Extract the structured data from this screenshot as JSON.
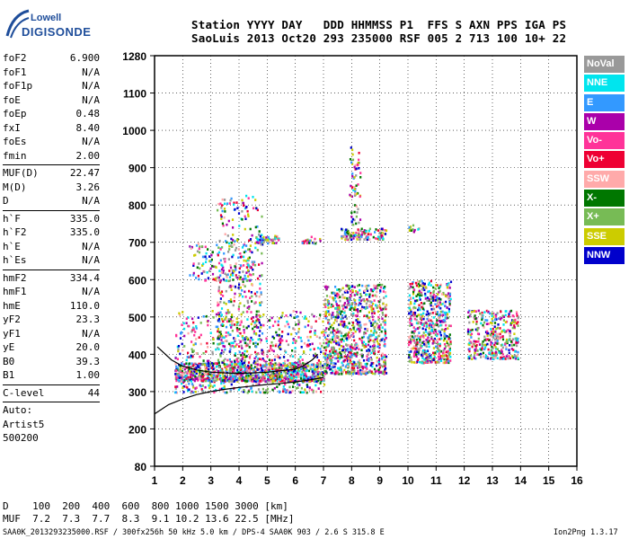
{
  "logo": {
    "line1": "Lowell",
    "line2": "DIGISONDE"
  },
  "header": {
    "line1": "Station YYYY DAY   DDD HHMMSS P1  FFS S AXN PPS IGA PS",
    "line2": "SaoLuis 2013 Oct20 293 235000 RSF 005 2 713 100 10+ 22"
  },
  "params": {
    "group1": [
      {
        "name": "foF2",
        "value": "6.900"
      },
      {
        "name": "foF1",
        "value": "N/A"
      },
      {
        "name": "foF1p",
        "value": "N/A"
      },
      {
        "name": "foE",
        "value": "N/A"
      },
      {
        "name": "foEp",
        "value": "0.48"
      },
      {
        "name": "fxI",
        "value": "8.40"
      },
      {
        "name": "foEs",
        "value": "N/A"
      },
      {
        "name": "fmin",
        "value": "2.00"
      }
    ],
    "group2": [
      {
        "name": "MUF(D)",
        "value": "22.47"
      },
      {
        "name": "M(D)",
        "value": "3.26"
      },
      {
        "name": "D",
        "value": "N/A"
      }
    ],
    "group3": [
      {
        "name": "h`F",
        "value": "335.0"
      },
      {
        "name": "h`F2",
        "value": "335.0"
      },
      {
        "name": "h`E",
        "value": "N/A"
      },
      {
        "name": "h`Es",
        "value": "N/A"
      }
    ],
    "group4": [
      {
        "name": "hmF2",
        "value": "334.4"
      },
      {
        "name": "hmF1",
        "value": "N/A"
      },
      {
        "name": "hmE",
        "value": "110.0"
      },
      {
        "name": "yF2",
        "value": "23.3"
      },
      {
        "name": "yF1",
        "value": "N/A"
      },
      {
        "name": "yE",
        "value": "20.0"
      },
      {
        "name": "B0",
        "value": "39.3"
      },
      {
        "name": "B1",
        "value": "1.00"
      }
    ],
    "clevel": {
      "name": "C-level",
      "value": "44"
    },
    "auto": [
      "Auto:",
      "Artist5",
      "500200"
    ]
  },
  "legend": [
    {
      "label": "NoVal",
      "color": "#999999"
    },
    {
      "label": "NNE",
      "color": "#00e5ee"
    },
    {
      "label": "E",
      "color": "#3399ff"
    },
    {
      "label": "W",
      "color": "#aa00aa"
    },
    {
      "label": "Vo-",
      "color": "#ff3399"
    },
    {
      "label": "Vo+",
      "color": "#ee0033"
    },
    {
      "label": "SSW",
      "color": "#ffaaaa"
    },
    {
      "label": "X-",
      "color": "#007700"
    },
    {
      "label": "X+",
      "color": "#77bb55"
    },
    {
      "label": "SSE",
      "color": "#cccc00"
    },
    {
      "label": "NNW",
      "color": "#0000cc"
    }
  ],
  "chart_data": {
    "type": "scatter",
    "x_ticks": [
      "1",
      "2",
      "3",
      "4",
      "5",
      "6",
      "7",
      "8",
      "9",
      "10",
      "11",
      "12",
      "13",
      "14",
      "15",
      "16"
    ],
    "y_ticks": [
      "80",
      "200",
      "300",
      "400",
      "500",
      "600",
      "700",
      "800",
      "900",
      "1000",
      "1100",
      "1280"
    ],
    "xlim": [
      1,
      16
    ],
    "y_tick_values": [
      80,
      200,
      300,
      400,
      500,
      600,
      700,
      800,
      900,
      1000,
      1100,
      1280
    ],
    "grid": true,
    "traces": [
      {
        "note": "",
        "x": [
          1.0,
          1.5,
          2.0,
          2.5,
          3.0,
          3.5,
          4.0,
          4.5,
          5.0,
          5.5,
          6.0,
          6.5,
          7.0
        ],
        "y": [
          240,
          265,
          280,
          292,
          300,
          306,
          311,
          315,
          319,
          322,
          326,
          331,
          338
        ]
      },
      {
        "note": "",
        "x": [
          1.1,
          1.6,
          2.0,
          2.5,
          3.0,
          3.5,
          4.0,
          4.5,
          5.0,
          5.5,
          6.0,
          6.3,
          6.6,
          6.8
        ],
        "y": [
          420,
          385,
          368,
          358,
          352,
          350,
          349,
          350,
          352,
          356,
          360,
          370,
          385,
          400
        ]
      }
    ]
  },
  "bottom": {
    "d_row": "D    100  200  400  600  800 1000 1500 3000 [km]",
    "muf_row": "MUF  7.2  7.3  7.7  8.3  9.1 10.2 13.6 22.5 [MHz]"
  },
  "footer": {
    "left": "SAA0K_2013293235000.RSF / 300fx256h 50 kHz 5.0 km / DPS-4 SAA0K 903 / 2.6 S 315.8 E",
    "right": "Ion2Png 1.3.17"
  }
}
